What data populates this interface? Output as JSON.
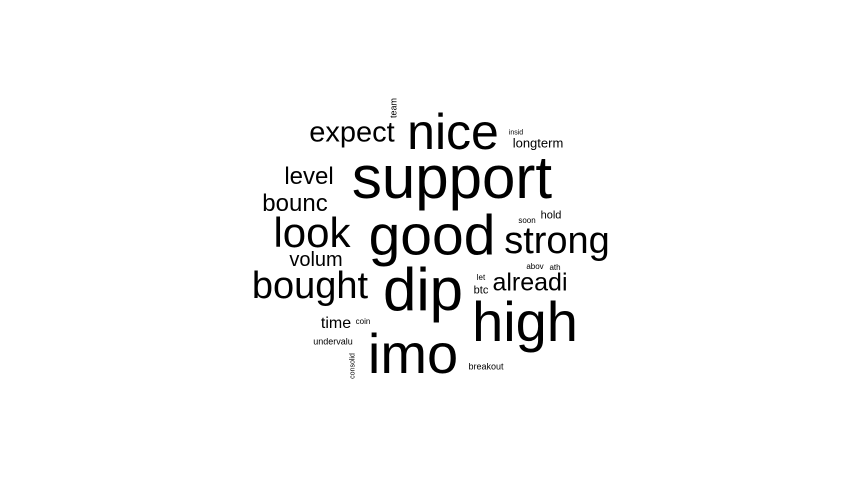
{
  "wordcloud": {
    "text_color": "#000000",
    "background_color": "#ffffff",
    "words": {
      "support": "support",
      "good": "good",
      "nice": "nice",
      "dip": "dip",
      "high": "high",
      "imo": "imo",
      "look": "look",
      "strong": "strong",
      "bought": "bought",
      "expect": "expect",
      "alreadi": "alreadi",
      "level": "level",
      "bounc": "bounc",
      "volum": "volum",
      "time": "time",
      "longterm": "longterm",
      "hold": "hold",
      "btc": "btc",
      "team": "team",
      "insid": "insid",
      "soon": "soon",
      "abov": "abov",
      "ath": "ath",
      "let": "let",
      "coin": "coin",
      "undervalu": "undervalu",
      "breakout": "breakout",
      "consolid": "consolid"
    }
  }
}
